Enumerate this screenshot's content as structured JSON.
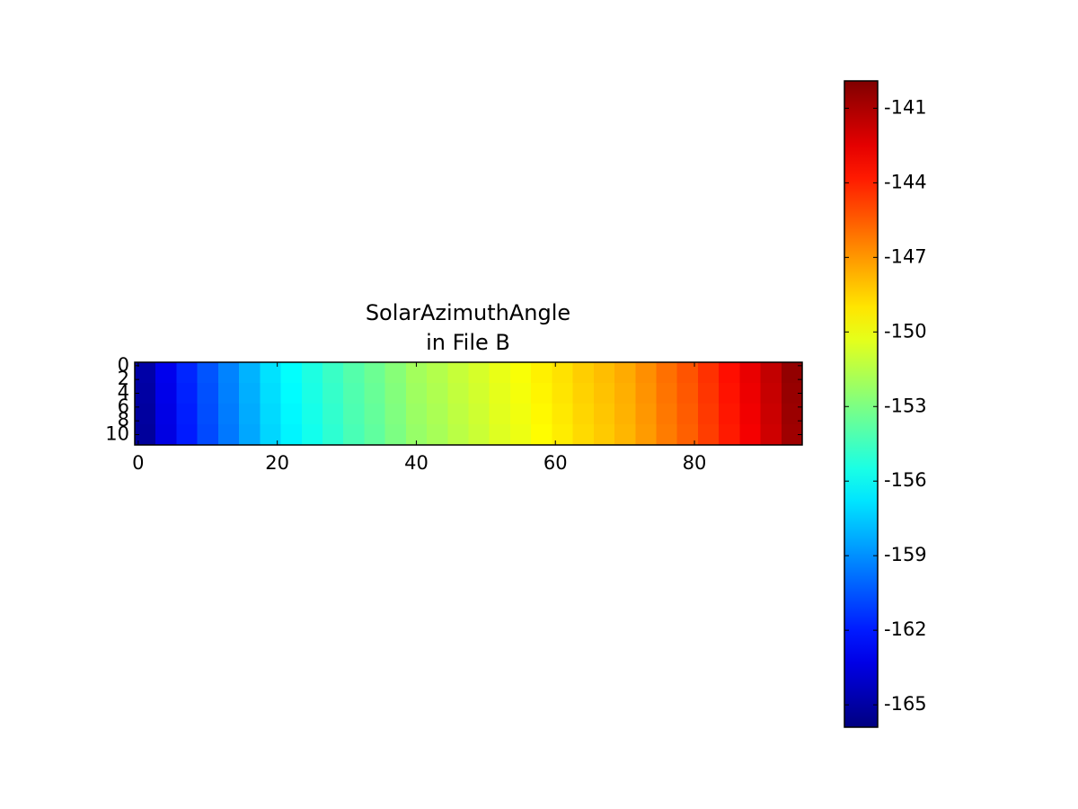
{
  "chart_data": {
    "type": "heatmap",
    "title": [
      "SolarAzimuthAngle",
      "in File B"
    ],
    "colormap": "jet",
    "xlim": [
      -0.5,
      95.5
    ],
    "ylim": [
      -0.5,
      11.5
    ],
    "xticks": [
      0,
      20,
      40,
      60,
      80
    ],
    "yticks": [
      0,
      2,
      4,
      6,
      8,
      10
    ],
    "z": [
      [
        -164.9,
        -163.1,
        -161.7,
        -160.5,
        -159.3,
        -158.1,
        -156.9,
        -156.1,
        -155.4,
        -154.7,
        -154.0,
        -153.4,
        -152.7,
        -152.0,
        -151.6,
        -151.1,
        -150.7,
        -150.2,
        -149.8,
        -149.3,
        -148.9,
        -148.4,
        -148.0,
        -147.5,
        -146.8,
        -146.0,
        -145.3,
        -144.4,
        -143.5,
        -142.6,
        -141.6,
        -140.4
      ],
      [
        -165.0,
        -163.2,
        -161.8,
        -160.6,
        -159.4,
        -158.2,
        -157.0,
        -156.2,
        -155.5,
        -154.8,
        -154.1,
        -153.5,
        -152.8,
        -152.1,
        -151.7,
        -151.2,
        -150.8,
        -150.3,
        -149.9,
        -149.4,
        -149.0,
        -148.5,
        -148.1,
        -147.6,
        -146.9,
        -146.1,
        -145.4,
        -144.5,
        -143.6,
        -142.7,
        -141.7,
        -140.5
      ],
      [
        -165.1,
        -163.3,
        -161.9,
        -160.7,
        -159.5,
        -158.3,
        -157.1,
        -156.3,
        -155.6,
        -154.9,
        -154.2,
        -153.6,
        -152.9,
        -152.2,
        -151.8,
        -151.3,
        -150.9,
        -150.4,
        -150.0,
        -149.5,
        -149.1,
        -148.6,
        -148.2,
        -147.7,
        -147.0,
        -146.2,
        -145.5,
        -144.6,
        -143.7,
        -142.8,
        -141.8,
        -140.6
      ],
      [
        -165.2,
        -163.4,
        -162.0,
        -160.8,
        -159.6,
        -158.4,
        -157.2,
        -156.4,
        -155.7,
        -155.0,
        -154.3,
        -153.7,
        -153.0,
        -152.3,
        -151.9,
        -151.4,
        -151.0,
        -150.5,
        -150.1,
        -149.6,
        -149.2,
        -148.7,
        -148.3,
        -147.8,
        -147.1,
        -146.3,
        -145.6,
        -144.7,
        -143.8,
        -142.9,
        -141.9,
        -140.7
      ]
    ],
    "colorbar": {
      "lim": [
        -165.9,
        -139.9
      ],
      "ticks": [
        -165,
        -162,
        -159,
        -156,
        -153,
        -150,
        -147,
        -144,
        -141
      ]
    }
  }
}
